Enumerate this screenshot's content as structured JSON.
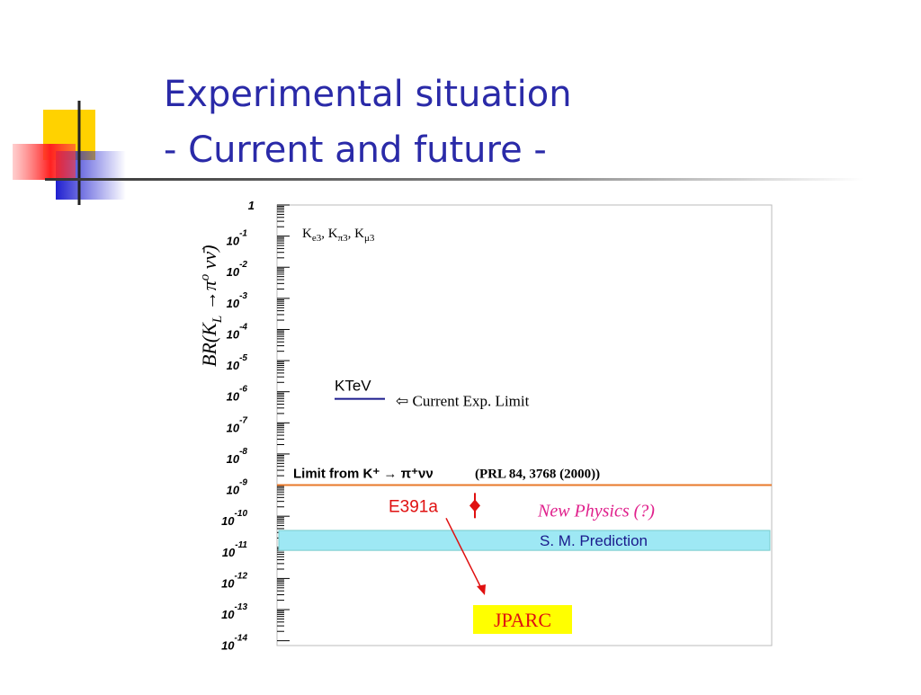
{
  "slide": {
    "title_line1": "Experimental situation",
    "title_line2": "- Current and future -"
  },
  "chart_data": {
    "type": "log-limits",
    "y_label": [
      "BR(K",
      "L",
      " →π",
      "o",
      " νν̄)"
    ],
    "log_scale": true,
    "ylim": [
      7e-15,
      1
    ],
    "yticks": [
      1,
      {
        "value": 0.1,
        "label": "10",
        "exponent": "-1"
      },
      {
        "value": 0.01,
        "label": "10",
        "exponent": "-2"
      },
      {
        "value": 0.001,
        "label": "10",
        "exponent": "-3"
      },
      {
        "value": 0.0001,
        "label": "10",
        "exponent": "-4"
      },
      {
        "value": 1e-05,
        "label": "10",
        "exponent": "-5"
      },
      {
        "value": 1e-06,
        "label": "10",
        "exponent": "-6"
      },
      {
        "value": 1e-07,
        "label": "10",
        "exponent": "-7"
      },
      {
        "value": 1e-08,
        "label": "10",
        "exponent": "-8"
      },
      {
        "value": 1e-09,
        "label": "10",
        "exponent": "-9"
      },
      {
        "value": 1e-10,
        "label": "10",
        "exponent": "-10"
      },
      {
        "value": 1e-11,
        "label": "10",
        "exponent": "-11"
      },
      {
        "value": 1e-12,
        "label": "10",
        "exponent": "-12"
      },
      {
        "value": 1e-13,
        "label": "10",
        "exponent": "-13"
      },
      {
        "value": 1e-14,
        "label": "10",
        "exponent": "-14"
      }
    ],
    "decay_modes": [
      {
        "text": "K",
        "sub": "e3",
        "after": ", "
      },
      {
        "text": "K",
        "sub": "π3",
        "after": ", "
      },
      {
        "text": "K",
        "sub": "μ3",
        "after": ""
      }
    ],
    "ktev": {
      "name": "KTeV",
      "value": 5.9e-07,
      "color": "#1a1a8c",
      "note": "⇦  Current Exp. Limit"
    },
    "indirect_limit": {
      "name": "Limit from K⁺ → π⁺νν",
      "ref": "(PRL 84, 3768 (2000))",
      "value": 1e-09,
      "color": "#e8782a"
    },
    "e391a": {
      "name": "E391a",
      "value": 2.2e-10,
      "color": "#e01010"
    },
    "new_physics": "New Physics (?)",
    "sm_band": {
      "name": "S. M. Prediction",
      "values": [
        8e-12,
        3.5e-11
      ],
      "color": "#9ee8f4"
    },
    "jparc": "JPARC"
  }
}
